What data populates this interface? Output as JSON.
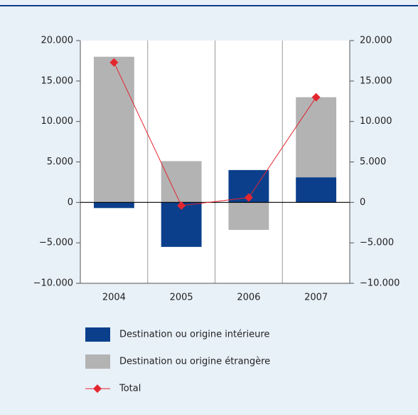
{
  "chart_data": {
    "type": "stacked-bar-line",
    "categories": [
      "2004",
      "2005",
      "2006",
      "2007"
    ],
    "series": [
      {
        "name": "Destination ou origine intérieure",
        "color": "#0b3f8c",
        "values": [
          -700,
          -5500,
          4000,
          3100
        ]
      },
      {
        "name": "Destination ou origine étrangère",
        "color": "#b3b3b3",
        "values": [
          18000,
          5100,
          -3400,
          9900
        ]
      },
      {
        "name": "Total",
        "color": "#e3262f",
        "type": "line",
        "values": [
          17300,
          -400,
          600,
          13000
        ]
      }
    ],
    "ylim": [
      -10000,
      20000
    ],
    "yticks": [
      {
        "value": -10000,
        "label": "−10.000"
      },
      {
        "value": -5000,
        "label": "−5.000"
      },
      0,
      {
        "value": 5000,
        "label": "5.000"
      },
      {
        "value": 10000,
        "label": "10.000"
      },
      {
        "value": 15000,
        "label": "15.000"
      },
      {
        "value": 20000,
        "label": "20.000"
      }
    ],
    "y2lim": [
      -10000,
      20000
    ],
    "y2ticks": [
      {
        "value": -10000,
        "label": "−10.000"
      },
      {
        "value": -5000,
        "label": "−5.000"
      },
      0,
      {
        "value": 5000,
        "label": "5.000"
      },
      {
        "value": 10000,
        "label": "10.000"
      },
      {
        "value": 15000,
        "label": "15.000"
      },
      {
        "value": 20000,
        "label": "20.000"
      }
    ]
  }
}
